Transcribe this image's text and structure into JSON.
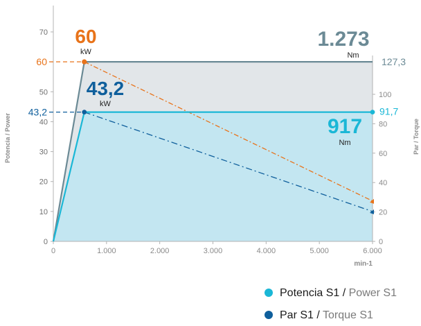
{
  "chart_data": {
    "type": "line",
    "xlabel": "min-1",
    "ylabel": "Potencia / Power",
    "y2label": "Par / Torque",
    "xlim": [
      0,
      6000
    ],
    "ylim": [
      0,
      70
    ],
    "y2lim": [
      0,
      150
    ],
    "x_ticks": [
      "0",
      "1.000",
      "2.000",
      "3.000",
      "4.000",
      "5.000",
      "6.000"
    ],
    "y_ticks": [
      "0",
      "10",
      "20",
      "30",
      "40",
      "50",
      "60",
      "70"
    ],
    "y2_ticks": [
      "0",
      "20",
      "40",
      "60",
      "80",
      "100"
    ],
    "series": [
      {
        "name": "Potencia S1 / Power S1",
        "axis": "left",
        "points": [
          [
            0,
            0
          ],
          [
            583,
            43.2
          ],
          [
            6000,
            43.2
          ]
        ]
      },
      {
        "name": "Par S1 / Torque S1",
        "axis": "left",
        "points": [
          [
            583,
            43.2
          ],
          [
            6000,
            10
          ]
        ]
      },
      {
        "axis": "left",
        "points": [
          [
            0,
            0
          ],
          [
            583,
            60
          ],
          [
            6000,
            60
          ]
        ]
      },
      {
        "axis": "left",
        "points": [
          [
            583,
            60
          ],
          [
            6000,
            13.5
          ]
        ]
      }
    ],
    "annotations": {
      "peak_power": {
        "value": "60",
        "unit": "kW",
        "axis_label": "60"
      },
      "s1_power": {
        "value": "43,2",
        "unit": "kW",
        "axis_label": "43,2"
      },
      "peak_torque": {
        "value": "1.273",
        "unit": "Nm",
        "axis_label": "127,3"
      },
      "s1_torque": {
        "value": "917",
        "unit": "Nm",
        "axis_label": "91,7"
      }
    },
    "colors": {
      "power_s1": "#1ab7d6",
      "torque_s1": "#0f5f9c",
      "peak": "#e8731a",
      "peak_line": "#6b8a95",
      "fill_light": "#c3e6f1",
      "fill_grey": "#e2e6e9"
    }
  },
  "legend": [
    {
      "label_bold": "Potencia S1",
      "sep": " / ",
      "label_light": "Power S1",
      "color": "#1ab7d6"
    },
    {
      "label_bold": "Par S1",
      "sep": " / ",
      "label_light": "Torque S1",
      "color": "#0f5f9c"
    }
  ]
}
